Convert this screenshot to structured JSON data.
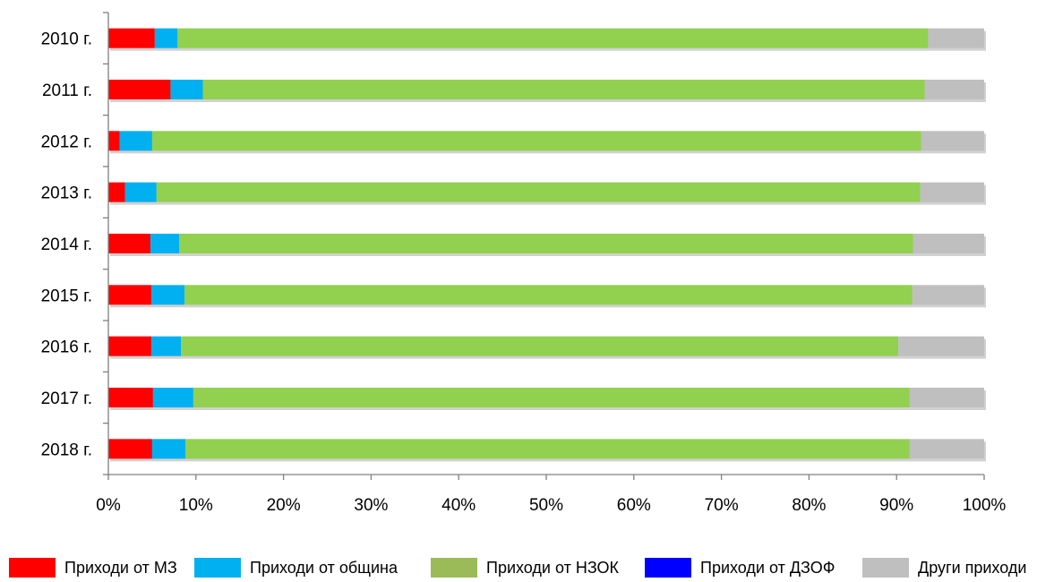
{
  "chart_data": {
    "type": "bar",
    "orientation": "horizontal",
    "stacked": "percent",
    "categories": [
      "2010 г.",
      "2011 г.",
      "2012 г.",
      "2013 г.",
      "2014 г.",
      "2015 г.",
      "2016 г.",
      "2017 г.",
      "2018 г."
    ],
    "series": [
      {
        "name": "Приходи от МЗ",
        "color": "#ff0000",
        "values": [
          5.3,
          7.1,
          1.3,
          1.9,
          4.8,
          4.9,
          4.9,
          5.1,
          5.0
        ]
      },
      {
        "name": "Приходи от община",
        "color": "#00b0f0",
        "values": [
          2.6,
          3.7,
          3.7,
          3.6,
          3.3,
          3.8,
          3.4,
          4.6,
          3.8
        ]
      },
      {
        "name": "Приходи от НЗОК",
        "color": "#92d050",
        "values": [
          85.7,
          82.4,
          87.8,
          87.2,
          83.8,
          83.1,
          81.9,
          81.8,
          82.7
        ]
      },
      {
        "name": "Приходи от ДЗОФ",
        "color": "#0000ff",
        "values": [
          0,
          0,
          0,
          0,
          0,
          0,
          0,
          0,
          0
        ]
      },
      {
        "name": "Други приходи",
        "color": "#bfbfbf",
        "values": [
          6.4,
          6.8,
          7.2,
          7.3,
          8.1,
          8.2,
          9.8,
          8.5,
          8.5
        ]
      }
    ],
    "xlim": [
      0,
      100
    ],
    "x_ticks": [
      "0%",
      "10%",
      "20%",
      "30%",
      "40%",
      "50%",
      "60%",
      "70%",
      "80%",
      "90%",
      "100%"
    ],
    "grid": false,
    "legend_position": "bottom"
  },
  "legend": [
    {
      "label": "Приходи от МЗ",
      "color": "#ff0000"
    },
    {
      "label": "Приходи от община",
      "color": "#00b0f0"
    },
    {
      "label": "Приходи от НЗОК",
      "color": "#9bbb59"
    },
    {
      "label": "Приходи от ДЗОФ",
      "color": "#0000ff"
    },
    {
      "label": "Други приходи",
      "color": "#bfbfbf"
    }
  ]
}
